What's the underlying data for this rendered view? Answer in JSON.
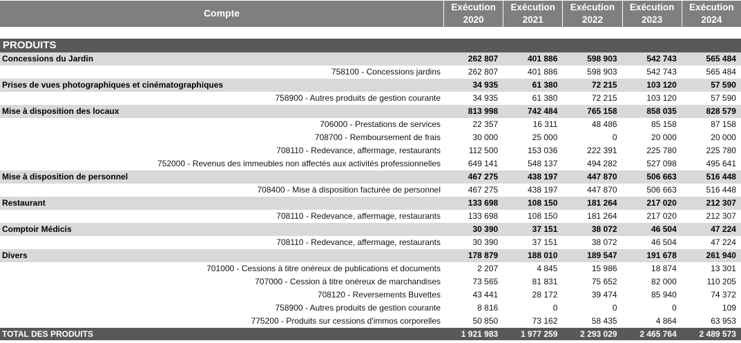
{
  "header": {
    "compte": "Compte",
    "years": [
      {
        "line1": "Exécution",
        "line2": "2020"
      },
      {
        "line1": "Exécution",
        "line2": "2021"
      },
      {
        "line1": "Exécution",
        "line2": "2022"
      },
      {
        "line1": "Exécution",
        "line2": "2023"
      },
      {
        "line1": "Exécution",
        "line2": "2024"
      }
    ]
  },
  "produits_title": "PRODUITS",
  "rows": [
    {
      "type": "section",
      "label": "Concessions du Jardin",
      "values": [
        "262 807",
        "401 886",
        "598 903",
        "542 743",
        "565 484"
      ]
    },
    {
      "type": "detail",
      "label": "758100 - Concessions jardins",
      "values": [
        "262 807",
        "401 886",
        "598 903",
        "542 743",
        "565 484"
      ]
    },
    {
      "type": "section",
      "label": "Prises de vues photographiques et cinématographiques",
      "values": [
        "34 935",
        "61 380",
        "72 215",
        "103 120",
        "57 590"
      ]
    },
    {
      "type": "detail",
      "label": "758900 - Autres produits de gestion courante",
      "values": [
        "34 935",
        "61 380",
        "72 215",
        "103 120",
        "57 590"
      ]
    },
    {
      "type": "section",
      "label": "Mise à disposition des locaux",
      "values": [
        "813 998",
        "742 484",
        "765 158",
        "858 035",
        "828 579"
      ]
    },
    {
      "type": "detail",
      "label": "706000 - Prestations de services",
      "values": [
        "22 357",
        "16 311",
        "48 486",
        "85 158",
        "87 158"
      ]
    },
    {
      "type": "detail",
      "label": "708700 - Remboursement de frais",
      "values": [
        "30 000",
        "25 000",
        "0",
        "20 000",
        "20 000"
      ]
    },
    {
      "type": "detail",
      "label": "708110 - Redevance, affermage, restaurants",
      "values": [
        "112 500",
        "153 036",
        "222 391",
        "225 780",
        "225 780"
      ]
    },
    {
      "type": "detail",
      "label": "752000 - Revenus des immeubles non affectés aux activités professionnelles",
      "values": [
        "649 141",
        "548 137",
        "494 282",
        "527 098",
        "495 641"
      ]
    },
    {
      "type": "section",
      "label": "Mise à disposition de personnel",
      "values": [
        "467 275",
        "438 197",
        "447 870",
        "506 663",
        "516 448"
      ]
    },
    {
      "type": "detail",
      "label": "708400 - Mise à disposition facturée de personnel",
      "values": [
        "467 275",
        "438 197",
        "447 870",
        "506 663",
        "516 448"
      ]
    },
    {
      "type": "section",
      "label": "Restaurant",
      "values": [
        "133 698",
        "108 150",
        "181 264",
        "217 020",
        "212 307"
      ]
    },
    {
      "type": "detail",
      "label": "708110 - Redevance, affermage, restaurants",
      "values": [
        "133 698",
        "108 150",
        "181 264",
        "217 020",
        "212 307"
      ]
    },
    {
      "type": "section",
      "label": "Comptoir Médicis",
      "values": [
        "30 390",
        "37 151",
        "38 072",
        "46 504",
        "47 224"
      ]
    },
    {
      "type": "detail",
      "label": "708110 - Redevance, affermage, restaurants",
      "values": [
        "30 390",
        "37 151",
        "38 072",
        "46 504",
        "47 224"
      ]
    },
    {
      "type": "section",
      "label": "Divers",
      "values": [
        "178 879",
        "188 010",
        "189 547",
        "191 678",
        "261 940"
      ]
    },
    {
      "type": "detail",
      "label": "701000 - Cessions à titre onéreux de publications et documents",
      "values": [
        "2 207",
        "4 845",
        "15 986",
        "18 874",
        "13 301"
      ]
    },
    {
      "type": "detail",
      "label": "707000 - Cession à titre onéreux de marchandises",
      "values": [
        "73 565",
        "81 831",
        "75 652",
        "82 000",
        "110 205"
      ]
    },
    {
      "type": "detail",
      "label": "708120 - Reversements Buvettes",
      "values": [
        "43 441",
        "28 172",
        "39 474",
        "85 940",
        "74 372"
      ]
    },
    {
      "type": "detail",
      "label": "758900 - Autres produits de gestion courante",
      "values": [
        "8 816",
        "0",
        "0",
        "0",
        "109"
      ]
    },
    {
      "type": "detail",
      "label": "775200 - Produits sur cessions d'immos corporelles",
      "values": [
        "50 850",
        "73 162",
        "58 435",
        "4 864",
        "63 953"
      ]
    },
    {
      "type": "total",
      "label": "TOTAL DES PRODUITS",
      "values": [
        "1 921 983",
        "1 977 259",
        "2 293 029",
        "2 465 764",
        "2 489 573"
      ]
    }
  ]
}
